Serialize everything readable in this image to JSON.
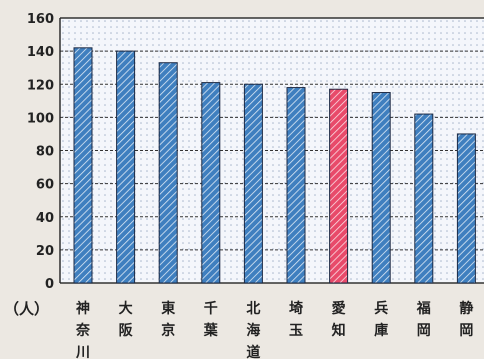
{
  "chart_data": {
    "type": "bar",
    "unit_label": "（人）",
    "categories": [
      "神奈川",
      "大阪",
      "東京",
      "千葉",
      "北海道",
      "埼玉",
      "愛知",
      "兵庫",
      "福岡",
      "静岡"
    ],
    "values": [
      142,
      140,
      133,
      121,
      120,
      118,
      117,
      115,
      102,
      90
    ],
    "ylim": [
      0,
      160
    ],
    "yticks": [
      0,
      20,
      40,
      60,
      80,
      100,
      120,
      140,
      160
    ],
    "highlight_category": "愛知",
    "grid": true,
    "colors": {
      "bar": "#3f7fbf",
      "bar_highlight": "#e84a6a",
      "plot_background": "#f4f6fb",
      "grid": "#333333"
    }
  }
}
